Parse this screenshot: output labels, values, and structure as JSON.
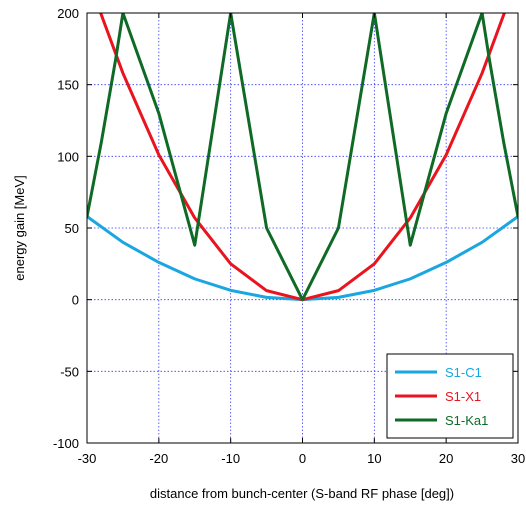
{
  "chart_data": {
    "type": "line",
    "title": "",
    "xlabel": "distance from bunch-center (S-band RF phase [deg])",
    "ylabel": "energy gain [MeV]",
    "xlim": [
      -30,
      30
    ],
    "ylim": [
      -100,
      200
    ],
    "x_ticks": [
      -30,
      -20,
      -10,
      0,
      10,
      20,
      30
    ],
    "y_ticks": [
      -100,
      -50,
      0,
      50,
      100,
      150,
      200
    ],
    "x_tick_labels": [
      "-30",
      "-20",
      "-10",
      "0",
      "10",
      "20",
      "30"
    ],
    "y_tick_labels": [
      "-100",
      "-50",
      "0",
      "50",
      "100",
      "150",
      "200"
    ],
    "grid": true,
    "legend_position": "bottom-right",
    "series": [
      {
        "name": "S1-C1",
        "color": "#1aa6e0",
        "x": [
          -30,
          -25,
          -20,
          -15,
          -10,
          -5,
          0,
          5,
          10,
          15,
          20,
          25,
          30
        ],
        "y": [
          58,
          40,
          26,
          14.5,
          6.5,
          1.6,
          0,
          1.6,
          6.5,
          14.5,
          26,
          40,
          58
        ]
      },
      {
        "name": "S1-X1",
        "color": "#e8141e",
        "x": [
          -28.1,
          -25,
          -20,
          -15,
          -10,
          -5,
          0,
          5,
          10,
          15,
          20,
          25,
          28.1
        ],
        "y": [
          200,
          158,
          101,
          57,
          25,
          6.3,
          0,
          6.3,
          25,
          57,
          101,
          158,
          200
        ]
      },
      {
        "name": "S1-Ka1",
        "color": "#0f6a26",
        "x": [
          -30,
          -28,
          -26,
          -25,
          -20,
          -15,
          -10,
          -5,
          0,
          5,
          10,
          15,
          20,
          25,
          26,
          28,
          30
        ],
        "y": [
          58,
          110,
          168,
          200,
          130,
          38,
          200,
          50,
          0,
          50,
          200,
          38,
          130,
          200,
          168,
          110,
          58
        ]
      }
    ]
  }
}
